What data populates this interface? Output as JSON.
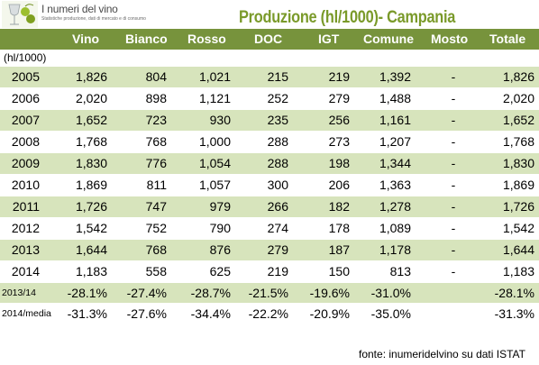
{
  "logo": {
    "brand": "I numeri del vino",
    "tagline": "Statistiche produzione, dati di mercato e di consumo"
  },
  "title": "Produzione (hl/1000)- Campania",
  "unit_label": "(hl/1000)",
  "columns": [
    "Vino",
    "Bianco",
    "Rosso",
    "DOC",
    "IGT",
    "Comune",
    "Mosto",
    "Totale"
  ],
  "rows": [
    {
      "label": "2005",
      "values": [
        "1,826",
        "804",
        "1,021",
        "215",
        "219",
        "1,392",
        "-",
        "1,826"
      ]
    },
    {
      "label": "2006",
      "values": [
        "2,020",
        "898",
        "1,121",
        "252",
        "279",
        "1,488",
        "-",
        "2,020"
      ]
    },
    {
      "label": "2007",
      "values": [
        "1,652",
        "723",
        "930",
        "235",
        "256",
        "1,161",
        "-",
        "1,652"
      ]
    },
    {
      "label": "2008",
      "values": [
        "1,768",
        "768",
        "1,000",
        "288",
        "273",
        "1,207",
        "-",
        "1,768"
      ]
    },
    {
      "label": "2009",
      "values": [
        "1,830",
        "776",
        "1,054",
        "288",
        "198",
        "1,344",
        "-",
        "1,830"
      ]
    },
    {
      "label": "2010",
      "values": [
        "1,869",
        "811",
        "1,057",
        "300",
        "206",
        "1,363",
        "-",
        "1,869"
      ]
    },
    {
      "label": "2011",
      "values": [
        "1,726",
        "747",
        "979",
        "266",
        "182",
        "1,278",
        "-",
        "1,726"
      ]
    },
    {
      "label": "2012",
      "values": [
        "1,542",
        "752",
        "790",
        "274",
        "178",
        "1,089",
        "-",
        "1,542"
      ]
    },
    {
      "label": "2013",
      "values": [
        "1,644",
        "768",
        "876",
        "279",
        "187",
        "1,178",
        "-",
        "1,644"
      ]
    },
    {
      "label": "2014",
      "values": [
        "1,183",
        "558",
        "625",
        "219",
        "150",
        "813",
        "-",
        "1,183"
      ]
    }
  ],
  "change_rows": [
    {
      "label": "2013/14",
      "values": [
        "-28.1%",
        "-27.4%",
        "-28.7%",
        "-21.5%",
        "-19.6%",
        "-31.0%",
        "",
        "-28.1%"
      ]
    },
    {
      "label": "2014/media",
      "values": [
        "-31.3%",
        "-27.6%",
        "-34.4%",
        "-22.2%",
        "-20.9%",
        "-35.0%",
        "",
        "-31.3%"
      ]
    }
  ],
  "source": "fonte: inumeridelvino su dati ISTAT",
  "colors": {
    "header": "#77933c",
    "stripe": "#d7e4bc",
    "title": "#7a9a2a"
  }
}
